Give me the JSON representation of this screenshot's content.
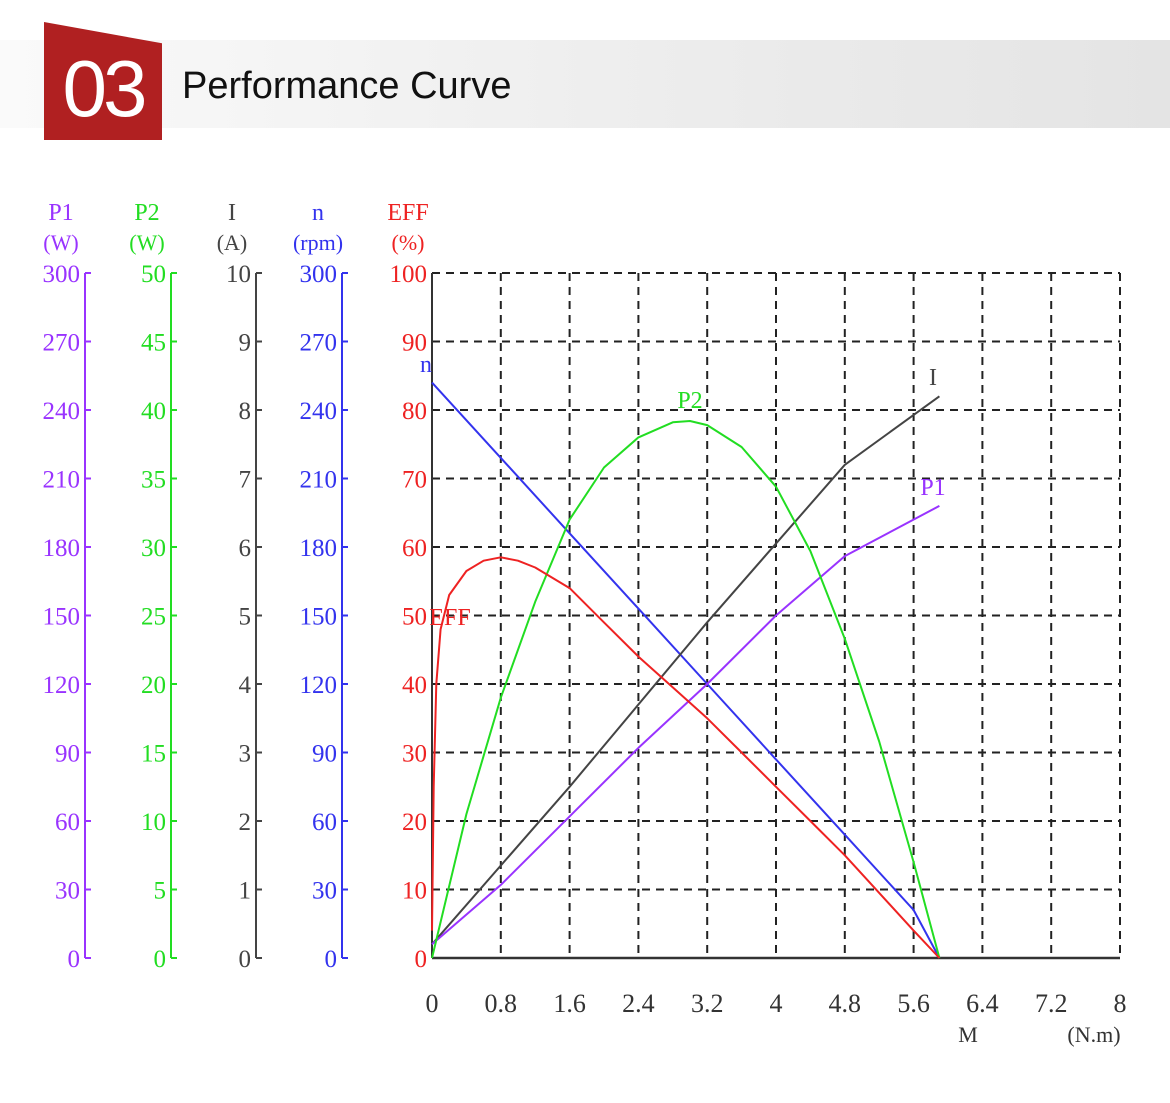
{
  "header": {
    "number": "03",
    "title": "Performance Curve"
  },
  "colors": {
    "badge": "#b02021",
    "P1": "#9933ff",
    "P2": "#22dd22",
    "I": "#444444",
    "n": "#3333ee",
    "EFF": "#ee2222",
    "grid": "#222222"
  },
  "chart_data": {
    "type": "line",
    "grid": true,
    "x_axis": {
      "label": "M",
      "unit": "(N.m)",
      "range": [
        0,
        8
      ],
      "ticks": [
        "0",
        "0.8",
        "1.6",
        "2.4",
        "3.2",
        "4",
        "4.8",
        "5.6",
        "6.4",
        "7.2",
        "8"
      ]
    },
    "y_axes": [
      {
        "key": "P1",
        "name": "P1",
        "unit": "(W)",
        "range": [
          0,
          300
        ],
        "ticks": [
          "0",
          "30",
          "60",
          "90",
          "120",
          "150",
          "180",
          "210",
          "240",
          "270",
          "300"
        ]
      },
      {
        "key": "P2",
        "name": "P2",
        "unit": "(W)",
        "range": [
          0,
          50
        ],
        "ticks": [
          "0",
          "5",
          "10",
          "15",
          "20",
          "25",
          "30",
          "35",
          "40",
          "45",
          "50"
        ]
      },
      {
        "key": "I",
        "name": "I",
        "unit": "(A)",
        "range": [
          0,
          10
        ],
        "ticks": [
          "0",
          "1",
          "2",
          "3",
          "4",
          "5",
          "6",
          "7",
          "8",
          "9",
          "10"
        ]
      },
      {
        "key": "n",
        "name": "n",
        "unit": "(rpm)",
        "range": [
          0,
          300
        ],
        "ticks": [
          "0",
          "30",
          "60",
          "90",
          "120",
          "150",
          "180",
          "210",
          "240",
          "270",
          "300"
        ]
      },
      {
        "key": "EFF",
        "name": "EFF",
        "unit": "(%)",
        "range": [
          0,
          100
        ],
        "ticks": [
          "0",
          "10",
          "20",
          "30",
          "40",
          "50",
          "60",
          "70",
          "80",
          "90",
          "100"
        ]
      }
    ],
    "series": [
      {
        "name": "n",
        "axis": "n",
        "points": [
          [
            0,
            252
          ],
          [
            0.8,
            219
          ],
          [
            1.6,
            186
          ],
          [
            2.4,
            153
          ],
          [
            3.2,
            120
          ],
          [
            4.0,
            87
          ],
          [
            4.8,
            54
          ],
          [
            5.6,
            21
          ],
          [
            5.9,
            0
          ]
        ]
      },
      {
        "name": "I",
        "axis": "I",
        "points": [
          [
            0,
            0.2
          ],
          [
            1.6,
            2.5
          ],
          [
            3.2,
            4.9
          ],
          [
            4.8,
            7.2
          ],
          [
            5.9,
            8.2
          ]
        ]
      },
      {
        "name": "P1",
        "axis": "P1",
        "points": [
          [
            0,
            6
          ],
          [
            0.8,
            32
          ],
          [
            1.6,
            62
          ],
          [
            2.4,
            92
          ],
          [
            3.2,
            120
          ],
          [
            4.0,
            150
          ],
          [
            4.8,
            176
          ],
          [
            5.9,
            198
          ]
        ]
      },
      {
        "name": "P2",
        "axis": "P2",
        "points": [
          [
            0,
            0
          ],
          [
            0.4,
            10.5
          ],
          [
            0.8,
            19
          ],
          [
            1.2,
            26
          ],
          [
            1.6,
            32
          ],
          [
            2.0,
            35.8
          ],
          [
            2.4,
            38
          ],
          [
            2.8,
            39.1
          ],
          [
            3.0,
            39.2
          ],
          [
            3.2,
            38.9
          ],
          [
            3.6,
            37.3
          ],
          [
            4.0,
            34.4
          ],
          [
            4.4,
            29.7
          ],
          [
            4.8,
            23.3
          ],
          [
            5.2,
            15.8
          ],
          [
            5.6,
            7
          ],
          [
            5.9,
            0
          ]
        ]
      },
      {
        "name": "EFF",
        "axis": "EFF",
        "points": [
          [
            0,
            4
          ],
          [
            0.02,
            25
          ],
          [
            0.05,
            40
          ],
          [
            0.1,
            48
          ],
          [
            0.2,
            53
          ],
          [
            0.4,
            56.5
          ],
          [
            0.6,
            58
          ],
          [
            0.8,
            58.5
          ],
          [
            1.0,
            58
          ],
          [
            1.2,
            57
          ],
          [
            1.6,
            54
          ],
          [
            2.0,
            49
          ],
          [
            2.4,
            44
          ],
          [
            2.8,
            39.5
          ],
          [
            3.2,
            35
          ],
          [
            3.6,
            30
          ],
          [
            4.0,
            25
          ],
          [
            4.4,
            20
          ],
          [
            4.8,
            15
          ],
          [
            5.2,
            9.5
          ],
          [
            5.6,
            4
          ],
          [
            5.9,
            0
          ]
        ]
      }
    ]
  }
}
